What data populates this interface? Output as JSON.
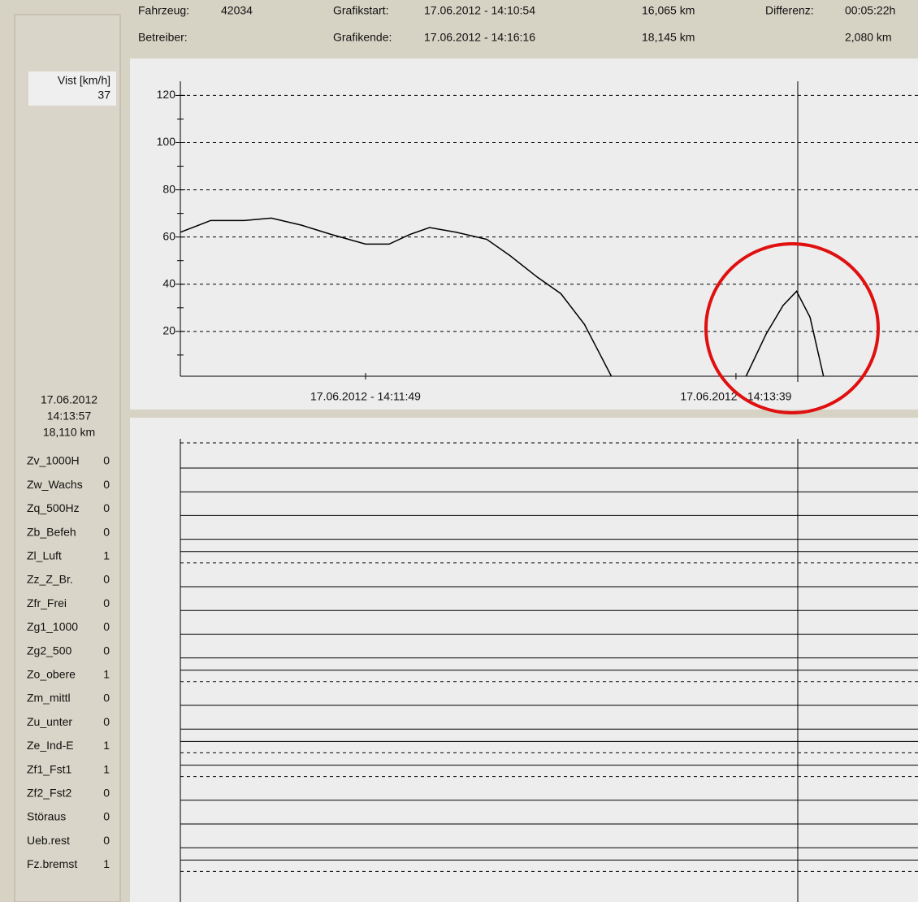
{
  "header": {
    "vehicle_label": "Fahrzeug:",
    "vehicle": "42034",
    "operator_label": "Betreiber:",
    "start_label": "Grafikstart:",
    "start": "17.06.2012 - 14:10:54",
    "start_km": "16,065 km",
    "end_label": "Grafikende:",
    "end": "17.06.2012 - 14:16:16",
    "end_km": "18,145 km",
    "diff_label": "Differenz:",
    "diff_time": "00:05:22h",
    "diff_km": "2,080 km"
  },
  "speed_readout": {
    "label": "Vist [km/h]",
    "value": 37
  },
  "cursor": {
    "date": "17.06.2012",
    "time": "14:13:57",
    "km": "18,110 km"
  },
  "signals": [
    {
      "name": "Zv_1000H",
      "value": 0
    },
    {
      "name": "Zw_Wachs",
      "value": 0
    },
    {
      "name": "Zq_500Hz",
      "value": 0
    },
    {
      "name": "Zb_Befeh",
      "value": 0
    },
    {
      "name": "Zl_Luft",
      "value": 1
    },
    {
      "name": "Zz_Z_Br.",
      "value": 0
    },
    {
      "name": "Zfr_Frei",
      "value": 0
    },
    {
      "name": "Zg1_1000",
      "value": 0
    },
    {
      "name": "Zg2_500",
      "value": 0
    },
    {
      "name": "Zo_obere",
      "value": 1
    },
    {
      "name": "Zm_mittl",
      "value": 0
    },
    {
      "name": "Zu_unter",
      "value": 0
    },
    {
      "name": "Ze_Ind-E",
      "value": 1
    },
    {
      "name": "Zf1_Fst1",
      "value": 1
    },
    {
      "name": "Zf2_Fst2",
      "value": 0
    },
    {
      "name": "Störaus",
      "value": 0
    },
    {
      "name": "Ueb.rest",
      "value": 0
    },
    {
      "name": "Fz.bremst",
      "value": 1
    }
  ],
  "chart_data": {
    "type": "line",
    "x": [
      0,
      9,
      19,
      27,
      36,
      45,
      55,
      62,
      68,
      74,
      82,
      91,
      98,
      106,
      113,
      120,
      124,
      128,
      null,
      168,
      174,
      179,
      183,
      187,
      191
    ],
    "series": [
      {
        "color": "#000000",
        "values": [
          62,
          67,
          67,
          68,
          65,
          61,
          57,
          57,
          61,
          64,
          62,
          59,
          52,
          43,
          36,
          23,
          12,
          1,
          null,
          1,
          19,
          31,
          37,
          26,
          1
        ]
      }
    ],
    "xlim": [
      0,
      322
    ],
    "xticks": [
      {
        "value": 55,
        "label": "17.06.2012 - 14:11:49"
      },
      {
        "value": 165,
        "label": "17.06.2012 - 14:13:39"
      }
    ],
    "ylim": [
      1,
      126
    ],
    "yticks": [
      20,
      40,
      60,
      80,
      100,
      120
    ],
    "minor_yticks": [
      10,
      30,
      50,
      70,
      90,
      110
    ],
    "grid": true
  }
}
